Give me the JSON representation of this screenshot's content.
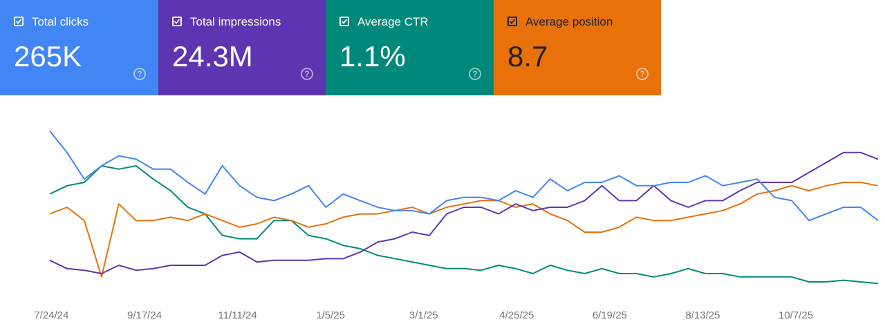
{
  "metrics": [
    {
      "label": "Total clicks",
      "value": "265K",
      "color": "#4285f4",
      "checked": true
    },
    {
      "label": "Total impressions",
      "value": "24.3M",
      "color": "#5e35b1",
      "checked": true
    },
    {
      "label": "Average CTR",
      "value": "1.1%",
      "color": "#00897b",
      "checked": true
    },
    {
      "label": "Average position",
      "value": "8.7",
      "color": "#e8710a",
      "checked": true
    }
  ],
  "help_glyph": "?",
  "chart_data": {
    "type": "line",
    "title": "",
    "xlabel": "",
    "ylabel": "",
    "x_unit": "days since 7/24/24",
    "x_range": [
      0,
      488
    ],
    "day_step": 10.2,
    "y_scale": "each series relative index (0-100), no y axis shown",
    "ylim": [
      0,
      100
    ],
    "grid": false,
    "x_ticks": [
      {
        "day": 1,
        "label": "7/24/24"
      },
      {
        "day": 56,
        "label": "9/17/24"
      },
      {
        "day": 111,
        "label": "11/11/24"
      },
      {
        "day": 166,
        "label": "1/5/25"
      },
      {
        "day": 221,
        "label": "3/1/25"
      },
      {
        "day": 276,
        "label": "4/25/25"
      },
      {
        "day": 331,
        "label": "6/19/25"
      },
      {
        "day": 386,
        "label": "8/13/25"
      },
      {
        "day": 441,
        "label": "10/7/25"
      }
    ],
    "series": [
      {
        "name": "Total clicks",
        "color": "#4285f4",
        "values": [
          96,
          83,
          67,
          75,
          81,
          79,
          73,
          73,
          65,
          58,
          75,
          63,
          56,
          54,
          58,
          63,
          50,
          58,
          54,
          50,
          48,
          48,
          46,
          54,
          56,
          56,
          54,
          60,
          56,
          67,
          60,
          65,
          65,
          69,
          63,
          63,
          65,
          65,
          69,
          63,
          65,
          67,
          56,
          54,
          42,
          46,
          50,
          50,
          42
        ]
      },
      {
        "name": "Total impressions",
        "color": "#5e35b1",
        "values": [
          18,
          13,
          12,
          10,
          15,
          12,
          13,
          15,
          15,
          15,
          21,
          23,
          17,
          18,
          18,
          18,
          19,
          19,
          23,
          29,
          31,
          35,
          33,
          46,
          50,
          50,
          46,
          52,
          48,
          50,
          50,
          54,
          63,
          54,
          54,
          63,
          54,
          50,
          54,
          54,
          60,
          65,
          65,
          65,
          71,
          77,
          83,
          83,
          79
        ]
      },
      {
        "name": "Average CTR",
        "color": "#00897b",
        "values": [
          58,
          63,
          65,
          75,
          73,
          75,
          67,
          60,
          50,
          46,
          33,
          31,
          31,
          42,
          42,
          33,
          31,
          27,
          25,
          21,
          19,
          17,
          15,
          13,
          13,
          12,
          15,
          13,
          10,
          15,
          12,
          10,
          13,
          10,
          10,
          8,
          10,
          13,
          10,
          10,
          8,
          8,
          8,
          8,
          5,
          5,
          6,
          5,
          4
        ]
      },
      {
        "name": "Average position",
        "color": "#e8710a",
        "values": [
          46,
          50,
          42,
          8,
          52,
          42,
          42,
          44,
          42,
          46,
          42,
          38,
          40,
          44,
          42,
          38,
          40,
          44,
          46,
          46,
          48,
          50,
          46,
          50,
          52,
          54,
          54,
          50,
          52,
          46,
          42,
          35,
          35,
          38,
          44,
          42,
          42,
          44,
          46,
          48,
          52,
          58,
          60,
          63,
          60,
          63,
          65,
          65,
          63
        ]
      }
    ]
  }
}
